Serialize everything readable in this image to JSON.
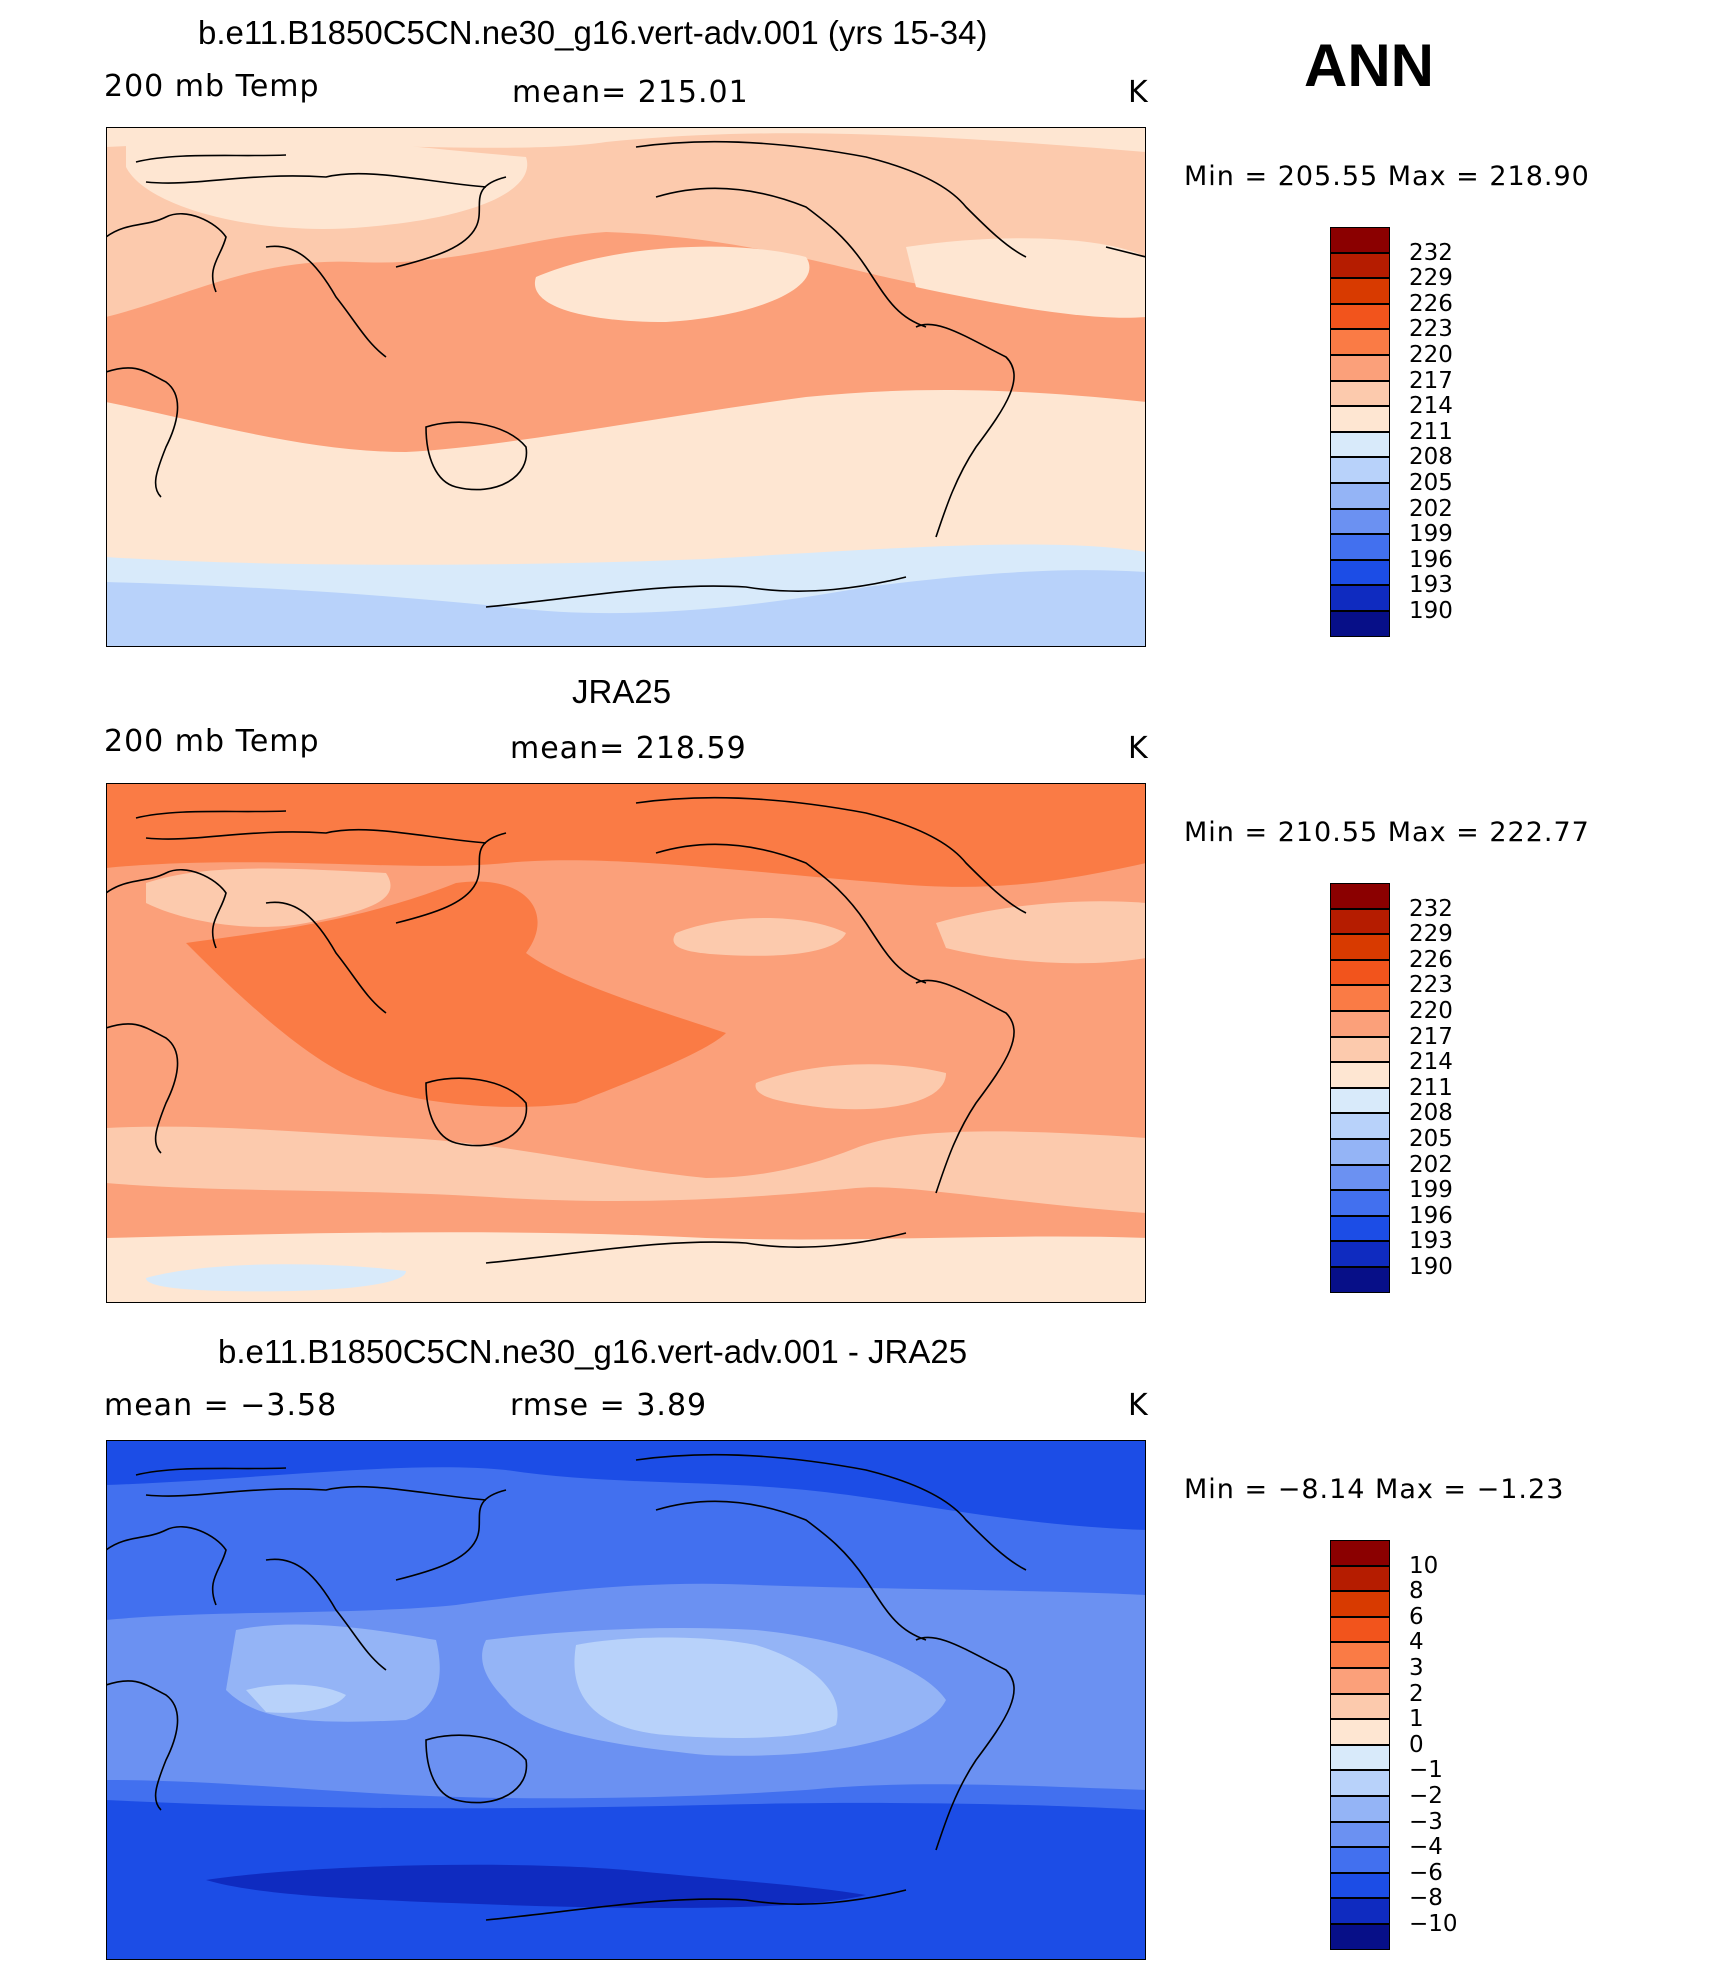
{
  "season": "ANN",
  "panels": [
    {
      "title": "b.e11.B1850C5CN.ne30_g16.vert-adv.001 (yrs 15-34)",
      "left_label": "200 mb Temp",
      "center_label": "mean=  215.01",
      "right_label": "K",
      "minmax": "Min  =  205.55  Max  =  218.90",
      "palette": "abs",
      "levels": [
        "232",
        "229",
        "226",
        "223",
        "220",
        "217",
        "214",
        "211",
        "208",
        "205",
        "202",
        "199",
        "196",
        "193",
        "190"
      ]
    },
    {
      "title": "JRA25",
      "left_label": "200 mb Temp",
      "center_label": "mean=  218.59",
      "right_label": "K",
      "minmax": "Min  =  210.55  Max  =  222.77",
      "palette": "abs",
      "levels": [
        "232",
        "229",
        "226",
        "223",
        "220",
        "217",
        "214",
        "211",
        "208",
        "205",
        "202",
        "199",
        "196",
        "193",
        "190"
      ]
    },
    {
      "title": "b.e11.B1850C5CN.ne30_g16.vert-adv.001 - JRA25",
      "left_label": "mean =     −3.58",
      "center_label": "rmse =     3.89",
      "right_label": "K",
      "minmax": "Min  =     −8.14  Max  =     −1.23",
      "palette": "diff",
      "levels": [
        "10",
        "8",
        "6",
        "4",
        "3",
        "2",
        "1",
        "0",
        "−1",
        "−2",
        "−3",
        "−4",
        "−6",
        "−8",
        "−10"
      ]
    }
  ],
  "colors": {
    "palette": [
      "#8b0000",
      "#b51c00",
      "#d83a00",
      "#f2541c",
      "#fa7b45",
      "#fba07a",
      "#fccaad",
      "#fee6d2",
      "#d8eafa",
      "#b8d2fa",
      "#94b4f6",
      "#6b91f2",
      "#4270ef",
      "#1c4de6",
      "#0f2bc0",
      "#070f88"
    ]
  }
}
